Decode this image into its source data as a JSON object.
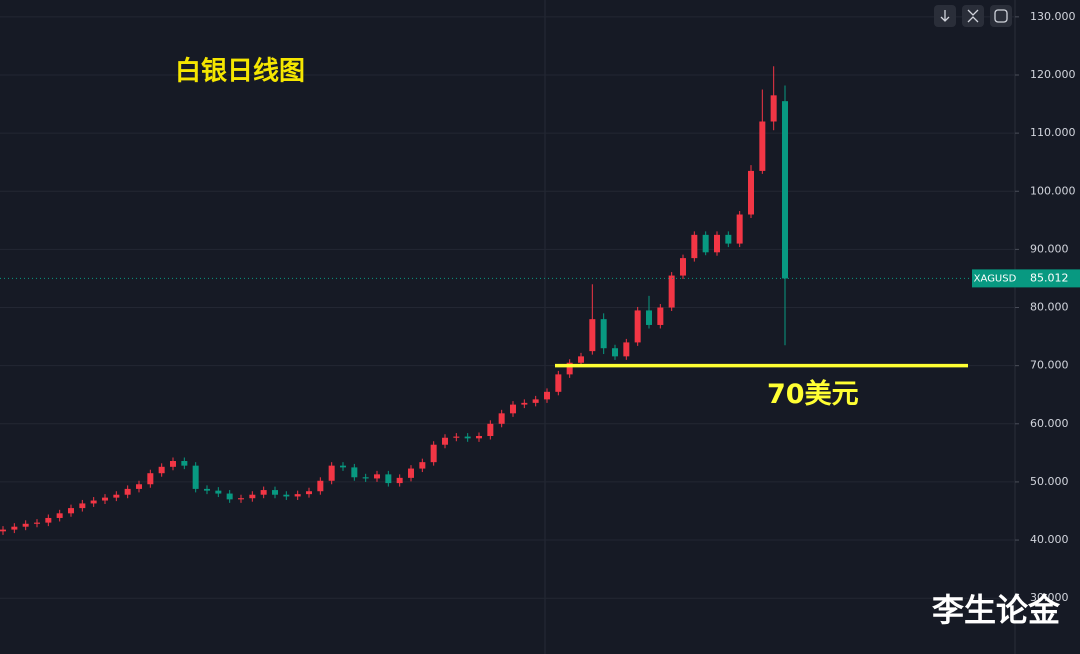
{
  "chart_data": {
    "type": "candlestick",
    "title": "白银日线图",
    "watermark": "李生论金",
    "up_color": "#f23645",
    "down_color": "#089981",
    "open": [
      41.5,
      41.8,
      42.3,
      42.8,
      43.0,
      43.8,
      44.6,
      45.5,
      46.3,
      46.8,
      47.3,
      47.8,
      48.8,
      49.6,
      51.5,
      52.6,
      53.6,
      52.8,
      48.8,
      48.5,
      48.0,
      47.0,
      47.2,
      47.8,
      48.6,
      47.8,
      47.5,
      47.9,
      48.4,
      50.2,
      52.8,
      52.5,
      50.8,
      50.6,
      51.3,
      49.8,
      50.7,
      52.3,
      53.4,
      56.4,
      57.6,
      57.8,
      57.5,
      57.9,
      60.0,
      61.8,
      63.3,
      63.6,
      64.2,
      65.5,
      68.5,
      70.5,
      72.5,
      78.0,
      73.0,
      71.6,
      74.0,
      79.5,
      77.0,
      80.0,
      85.5,
      88.5,
      92.5,
      89.5,
      92.5,
      91.0,
      96.0,
      103.5,
      112.0,
      115.5
    ],
    "high": [
      42.4,
      42.9,
      43.4,
      43.6,
      44.4,
      45.2,
      46.1,
      46.9,
      47.4,
      47.9,
      48.4,
      49.4,
      50.2,
      52.1,
      53.2,
      54.2,
      54.2,
      53.4,
      49.4,
      49.1,
      48.6,
      47.8,
      48.4,
      49.2,
      49.2,
      48.4,
      48.5,
      49.0,
      50.8,
      53.4,
      53.4,
      53.1,
      51.4,
      51.9,
      51.9,
      51.3,
      52.9,
      54.0,
      57.0,
      58.2,
      58.4,
      58.4,
      58.5,
      60.6,
      62.4,
      63.9,
      64.2,
      64.8,
      66.1,
      69.1,
      71.1,
      72.2,
      84.0,
      79.0,
      73.6,
      74.6,
      80.1,
      82.0,
      80.6,
      86.1,
      89.1,
      93.1,
      93.1,
      93.1,
      93.1,
      96.6,
      104.5,
      117.5,
      121.5,
      118.2
    ],
    "low": [
      40.9,
      41.2,
      41.7,
      42.2,
      42.4,
      43.2,
      44.0,
      44.9,
      45.7,
      46.2,
      46.7,
      47.2,
      48.2,
      49.0,
      50.9,
      52.0,
      52.2,
      48.2,
      47.9,
      47.4,
      46.4,
      46.4,
      46.6,
      47.2,
      47.2,
      46.9,
      46.9,
      47.3,
      47.8,
      49.6,
      51.9,
      50.2,
      50.0,
      50.0,
      49.2,
      49.2,
      50.1,
      51.7,
      52.8,
      55.8,
      57.0,
      56.9,
      56.9,
      57.3,
      59.4,
      61.2,
      62.7,
      63.0,
      63.6,
      64.9,
      67.9,
      69.9,
      71.9,
      72.0,
      71.0,
      71.0,
      73.4,
      76.4,
      76.4,
      79.4,
      84.9,
      87.9,
      89.0,
      88.9,
      90.4,
      90.4,
      95.4,
      103.0,
      110.5,
      73.5
    ],
    "close": [
      41.8,
      42.3,
      42.8,
      43.0,
      43.8,
      44.6,
      45.5,
      46.3,
      46.8,
      47.3,
      47.8,
      48.8,
      49.6,
      51.5,
      52.6,
      53.6,
      52.8,
      48.8,
      48.5,
      48.0,
      47.0,
      47.2,
      47.8,
      48.6,
      47.8,
      47.5,
      47.9,
      48.4,
      50.2,
      52.8,
      52.5,
      50.8,
      50.6,
      51.3,
      49.8,
      50.7,
      52.3,
      53.4,
      56.4,
      57.6,
      57.8,
      57.5,
      57.9,
      60.0,
      61.8,
      63.3,
      63.6,
      64.2,
      65.5,
      68.5,
      70.5,
      71.6,
      78.0,
      73.0,
      71.6,
      74.0,
      79.5,
      77.0,
      80.0,
      85.5,
      88.5,
      92.5,
      89.5,
      92.5,
      91.0,
      96.0,
      103.5,
      112.0,
      116.5,
      85.0
    ],
    "ylim": [
      20.4,
      132.9
    ],
    "yticks": [
      {
        "value": 30,
        "label": "30.000"
      },
      {
        "value": 40,
        "label": "40.000"
      },
      {
        "value": 50,
        "label": "50.000"
      },
      {
        "value": 60,
        "label": "60.000"
      },
      {
        "value": 70,
        "label": "70.000"
      },
      {
        "value": 80,
        "label": "80.000"
      },
      {
        "value": 90,
        "label": "90.000"
      },
      {
        "value": 100,
        "label": "100.000"
      },
      {
        "value": 110,
        "label": "110.000"
      },
      {
        "value": 120,
        "label": "120.000"
      },
      {
        "value": 130,
        "label": "130.000"
      }
    ],
    "grid": true,
    "last_price": {
      "symbol": "XAGUSD",
      "value": 85.012,
      "color": "#089981"
    },
    "support_line": {
      "value": 70,
      "label": "70美元",
      "color": "#ffff33"
    }
  }
}
